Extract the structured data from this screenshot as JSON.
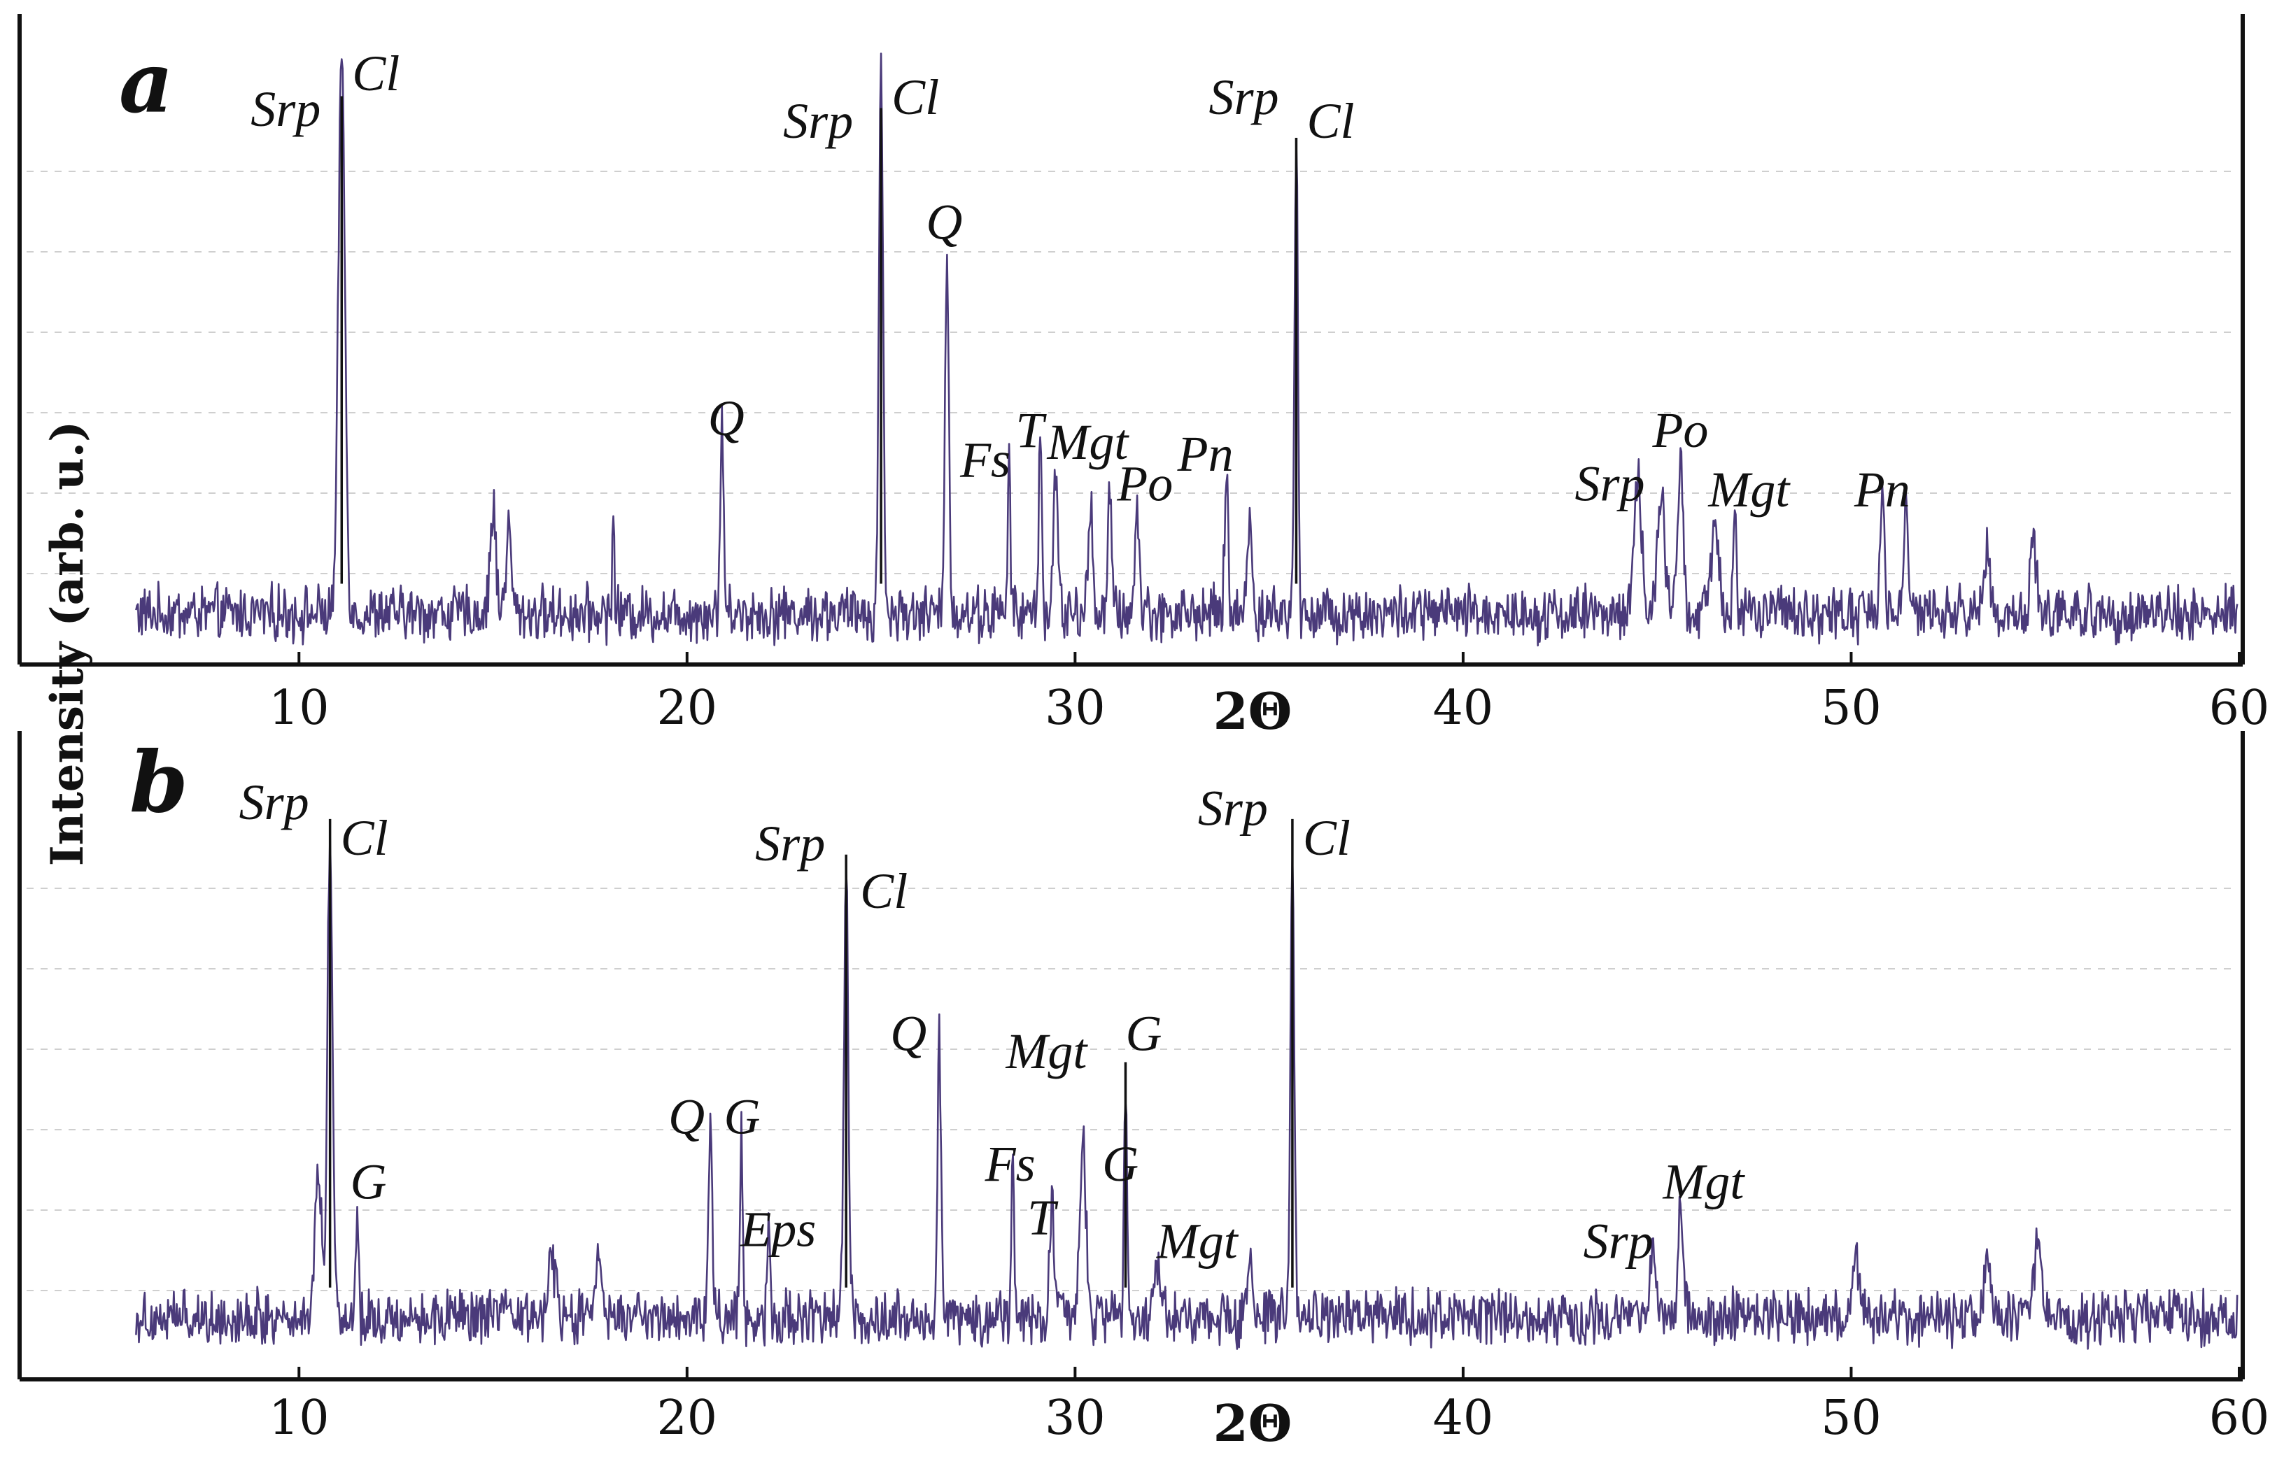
{
  "colors": {
    "pattern": "#4a3a7a",
    "peak_stick": "#111111",
    "axis": "#111111",
    "grid": "#cfcfcf"
  },
  "y_axis_label": "Intensity (arb. u.)",
  "chart_data": [
    {
      "type": "line",
      "panel": "a",
      "xlabel": "2Θ",
      "ylabel": "Intensity (arb. u.)",
      "xlim": [
        5,
        60
      ],
      "x_ticks": [
        10,
        20,
        30,
        40,
        50,
        60
      ],
      "x_tick_labels": [
        "10",
        "20",
        "30",
        "40",
        "50",
        "60"
      ],
      "y_scale": "arbitrary, no tick labels",
      "grid": "horizontal dashed",
      "baseline": 0.08,
      "peaks": [
        {
          "x": 11.1,
          "height": 0.95,
          "width": 0.35
        },
        {
          "x": 15.0,
          "height": 0.18,
          "width": 0.3
        },
        {
          "x": 15.4,
          "height": 0.14,
          "width": 0.3
        },
        {
          "x": 18.1,
          "height": 0.16,
          "width": 0.12
        },
        {
          "x": 20.9,
          "height": 0.33,
          "width": 0.18
        },
        {
          "x": 25.0,
          "height": 0.93,
          "width": 0.22
        },
        {
          "x": 26.7,
          "height": 0.63,
          "width": 0.2
        },
        {
          "x": 28.3,
          "height": 0.26,
          "width": 0.14
        },
        {
          "x": 29.1,
          "height": 0.32,
          "width": 0.16
        },
        {
          "x": 29.5,
          "height": 0.22,
          "width": 0.25
        },
        {
          "x": 30.4,
          "height": 0.18,
          "width": 0.25
        },
        {
          "x": 30.9,
          "height": 0.22,
          "width": 0.18
        },
        {
          "x": 31.6,
          "height": 0.17,
          "width": 0.25
        },
        {
          "x": 33.9,
          "height": 0.22,
          "width": 0.2
        },
        {
          "x": 34.5,
          "height": 0.16,
          "width": 0.25
        },
        {
          "x": 35.7,
          "height": 0.82,
          "width": 0.18
        },
        {
          "x": 44.5,
          "height": 0.22,
          "width": 0.4
        },
        {
          "x": 45.1,
          "height": 0.2,
          "width": 0.4
        },
        {
          "x": 45.6,
          "height": 0.24,
          "width": 0.3
        },
        {
          "x": 46.5,
          "height": 0.16,
          "width": 0.4
        },
        {
          "x": 47.0,
          "height": 0.18,
          "width": 0.16
        },
        {
          "x": 50.8,
          "height": 0.23,
          "width": 0.22
        },
        {
          "x": 51.4,
          "height": 0.19,
          "width": 0.22
        },
        {
          "x": 53.5,
          "height": 0.12,
          "width": 0.3
        },
        {
          "x": 54.7,
          "height": 0.12,
          "width": 0.3
        }
      ],
      "annotations": [
        {
          "text": "Srp",
          "x": 11.1,
          "y": 0.9,
          "dx": -130,
          "dy": 0
        },
        {
          "text": "Cl",
          "x": 11.1,
          "y": 0.96,
          "dx": 15,
          "dy": 0
        },
        {
          "text": "Q",
          "x": 20.9,
          "y": 0.38,
          "dx": -20,
          "dy": 0
        },
        {
          "text": "Srp",
          "x": 25.0,
          "y": 0.88,
          "dx": -140,
          "dy": 0
        },
        {
          "text": "Cl",
          "x": 25.0,
          "y": 0.92,
          "dx": 15,
          "dy": 0
        },
        {
          "text": "Q",
          "x": 26.7,
          "y": 0.71,
          "dx": -30,
          "dy": 0
        },
        {
          "text": "Fs",
          "x": 28.3,
          "y": 0.31,
          "dx": -70,
          "dy": 0
        },
        {
          "text": "T",
          "x": 29.1,
          "y": 0.36,
          "dx": -35,
          "dy": 0
        },
        {
          "text": "Mgt",
          "x": 29.1,
          "y": 0.34,
          "dx": 10,
          "dy": 0
        },
        {
          "text": "Po",
          "x": 30.9,
          "y": 0.27,
          "dx": 10,
          "dy": 0
        },
        {
          "text": "Pn",
          "x": 33.9,
          "y": 0.32,
          "dx": -70,
          "dy": 0
        },
        {
          "text": "Srp",
          "x": 35.7,
          "y": 0.92,
          "dx": -125,
          "dy": 0
        },
        {
          "text": "Cl",
          "x": 35.7,
          "y": 0.88,
          "dx": 15,
          "dy": 0
        },
        {
          "text": "Srp",
          "x": 44.5,
          "y": 0.27,
          "dx": -90,
          "dy": 0
        },
        {
          "text": "Po",
          "x": 45.6,
          "y": 0.36,
          "dx": -40,
          "dy": 0
        },
        {
          "text": "Mgt",
          "x": 46.5,
          "y": 0.26,
          "dx": -10,
          "dy": 0
        },
        {
          "text": "Pn",
          "x": 50.8,
          "y": 0.26,
          "dx": -40,
          "dy": 0
        }
      ],
      "sticks": [
        {
          "x": 11.1,
          "top": 0.95
        },
        {
          "x": 25.0,
          "top": 0.93
        },
        {
          "x": 35.7,
          "top": 0.88
        }
      ]
    },
    {
      "type": "line",
      "panel": "b",
      "xlabel": "2Θ",
      "ylabel": "Intensity (arb. u.)",
      "xlim": [
        5,
        60
      ],
      "x_ticks": [
        10,
        20,
        30,
        40,
        50,
        60
      ],
      "x_tick_labels": [
        "10",
        "20",
        "30",
        "40",
        "50",
        "60"
      ],
      "y_scale": "arbitrary, no tick labels",
      "grid": "horizontal dashed",
      "baseline": 0.1,
      "peaks": [
        {
          "x": 10.5,
          "height": 0.25,
          "width": 0.35
        },
        {
          "x": 10.8,
          "height": 0.82,
          "width": 0.28
        },
        {
          "x": 11.5,
          "height": 0.18,
          "width": 0.15
        },
        {
          "x": 16.5,
          "height": 0.1,
          "width": 0.4
        },
        {
          "x": 17.7,
          "height": 0.11,
          "width": 0.3
        },
        {
          "x": 20.6,
          "height": 0.32,
          "width": 0.2
        },
        {
          "x": 21.4,
          "height": 0.32,
          "width": 0.15
        },
        {
          "x": 22.1,
          "height": 0.15,
          "width": 0.15
        },
        {
          "x": 24.1,
          "height": 0.74,
          "width": 0.24
        },
        {
          "x": 26.5,
          "height": 0.46,
          "width": 0.2
        },
        {
          "x": 28.4,
          "height": 0.28,
          "width": 0.14
        },
        {
          "x": 29.4,
          "height": 0.18,
          "width": 0.25
        },
        {
          "x": 30.2,
          "height": 0.3,
          "width": 0.35
        },
        {
          "x": 31.3,
          "height": 0.4,
          "width": 0.16
        },
        {
          "x": 32.1,
          "height": 0.1,
          "width": 0.4
        },
        {
          "x": 34.5,
          "height": 0.11,
          "width": 0.25
        },
        {
          "x": 35.6,
          "height": 0.78,
          "width": 0.2
        },
        {
          "x": 44.9,
          "height": 0.12,
          "width": 0.4
        },
        {
          "x": 45.6,
          "height": 0.17,
          "width": 0.3
        },
        {
          "x": 50.1,
          "height": 0.09,
          "width": 0.4
        },
        {
          "x": 53.5,
          "height": 0.1,
          "width": 0.35
        },
        {
          "x": 54.8,
          "height": 0.12,
          "width": 0.4
        }
      ],
      "annotations": [
        {
          "text": "Srp",
          "x": 10.8,
          "y": 0.94,
          "dx": -130,
          "dy": 0
        },
        {
          "text": "Cl",
          "x": 10.8,
          "y": 0.88,
          "dx": 15,
          "dy": 0
        },
        {
          "text": "G",
          "x": 11.5,
          "y": 0.3,
          "dx": -10,
          "dy": 0
        },
        {
          "text": "Q",
          "x": 20.6,
          "y": 0.41,
          "dx": -60,
          "dy": 0
        },
        {
          "text": "G",
          "x": 21.4,
          "y": 0.41,
          "dx": -25,
          "dy": 0
        },
        {
          "text": "Eps",
          "x": 22.1,
          "y": 0.22,
          "dx": -40,
          "dy": 0
        },
        {
          "text": "Srp",
          "x": 24.1,
          "y": 0.87,
          "dx": -130,
          "dy": 0
        },
        {
          "text": "Cl",
          "x": 24.1,
          "y": 0.79,
          "dx": 20,
          "dy": 0
        },
        {
          "text": "Q",
          "x": 26.5,
          "y": 0.55,
          "dx": -70,
          "dy": 0
        },
        {
          "text": "Fs",
          "x": 28.4,
          "y": 0.33,
          "dx": -40,
          "dy": 0
        },
        {
          "text": "T",
          "x": 29.4,
          "y": 0.24,
          "dx": -35,
          "dy": 0
        },
        {
          "text": "Mgt",
          "x": 30.2,
          "y": 0.52,
          "dx": -110,
          "dy": 0
        },
        {
          "text": "G",
          "x": 30.7,
          "y": 0.33,
          "dx": 0,
          "dy": 0
        },
        {
          "text": "G",
          "x": 31.3,
          "y": 0.55,
          "dx": 0,
          "dy": 0
        },
        {
          "text": "Mgt",
          "x": 32.1,
          "y": 0.2,
          "dx": 0,
          "dy": 0
        },
        {
          "text": "Srp",
          "x": 35.6,
          "y": 0.93,
          "dx": -135,
          "dy": 0
        },
        {
          "text": "Cl",
          "x": 35.6,
          "y": 0.88,
          "dx": 15,
          "dy": 0
        },
        {
          "text": "Srp",
          "x": 44.9,
          "y": 0.2,
          "dx": -100,
          "dy": 0
        },
        {
          "text": "Mgt",
          "x": 45.6,
          "y": 0.3,
          "dx": -25,
          "dy": 0
        }
      ],
      "sticks": [
        {
          "x": 10.8,
          "top": 0.94
        },
        {
          "x": 24.1,
          "top": 0.88
        },
        {
          "x": 35.6,
          "top": 0.94
        },
        {
          "x": 31.3,
          "top": 0.53
        }
      ]
    }
  ]
}
